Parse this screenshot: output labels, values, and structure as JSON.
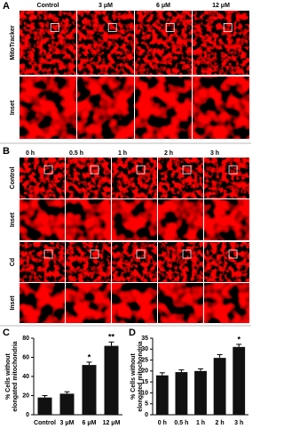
{
  "panel_a": {
    "label": "A",
    "columns": [
      "Control",
      "3 μM",
      "6 μM",
      "12 μM"
    ],
    "rows": [
      "MitoTracker",
      "Inset"
    ]
  },
  "panel_b": {
    "label": "B",
    "columns": [
      "0 h",
      "0.5 h",
      "1 h",
      "2 h",
      "3 h"
    ],
    "rows": [
      "Control",
      "Inset",
      "Cd",
      "Inset"
    ]
  },
  "chart_data": [
    {
      "type": "bar",
      "label": "C",
      "ylabel": [
        "% Cells without",
        "elongated mitochondria"
      ],
      "categories": [
        "Control",
        "3 μM",
        "6 μM",
        "12 μM"
      ],
      "values": [
        18,
        22,
        52,
        72
      ],
      "errors": [
        2,
        2,
        3,
        4
      ],
      "significance": [
        null,
        null,
        "*",
        "**"
      ],
      "color": "#111111",
      "ylim": [
        0,
        80
      ],
      "yticks": [
        0,
        20,
        40,
        60,
        80
      ]
    },
    {
      "type": "bar",
      "label": "D",
      "ylabel": [
        "% Cells without",
        "elongated mitochondria"
      ],
      "categories": [
        "0 h",
        "0.5 h",
        "1 h",
        "2 h",
        "3 h"
      ],
      "values": [
        18,
        19.5,
        20,
        26,
        31
      ],
      "errors": [
        1.2,
        1,
        1,
        1.5,
        1.2
      ],
      "significance": [
        null,
        null,
        null,
        null,
        "*"
      ],
      "color": "#111111",
      "ylim": [
        0,
        35
      ],
      "yticks": [
        0,
        5,
        10,
        15,
        20,
        25,
        30,
        35
      ]
    }
  ]
}
